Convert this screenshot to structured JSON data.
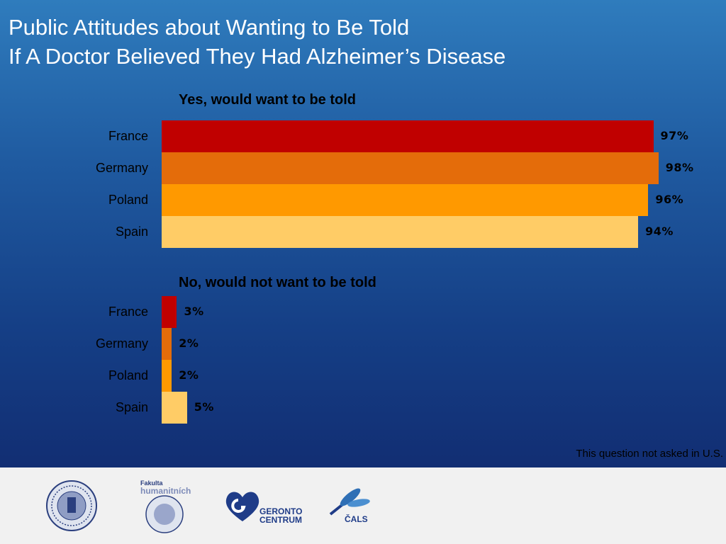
{
  "title": {
    "line1": "Public Attitudes about Wanting to Be Told",
    "line2": "If A Doctor Believed They Had Alzheimer’s Disease"
  },
  "footnote": "This question not asked in U.S.",
  "colors": {
    "France": "#c00000",
    "Germany": "#e46c0a",
    "Poland": "#ff9900",
    "Spain": "#ffcc66"
  },
  "chart_data": [
    {
      "type": "bar",
      "orientation": "horizontal",
      "title": "Yes, would want to be told",
      "categories": [
        "France",
        "Germany",
        "Poland",
        "Spain"
      ],
      "values": [
        97,
        98,
        96,
        94
      ],
      "value_labels": [
        "97%",
        "98%",
        "96%",
        "94%"
      ],
      "xlim": [
        0,
        100
      ],
      "grid": false,
      "legend": "none"
    },
    {
      "type": "bar",
      "orientation": "horizontal",
      "title": "No, would not want to be told",
      "categories": [
        "France",
        "Germany",
        "Poland",
        "Spain"
      ],
      "values": [
        3,
        2,
        2,
        5
      ],
      "value_labels": [
        "3%",
        "2%",
        "2%",
        "5%"
      ],
      "xlim": [
        0,
        100
      ],
      "grid": false,
      "legend": "none"
    }
  ],
  "logos": {
    "gc_line1": "GERONTO",
    "gc_line2": "CENTRUM",
    "fhs_line1": "Fakulta",
    "fhs_line2": "humanitních",
    "cals_text": "ČALS"
  }
}
